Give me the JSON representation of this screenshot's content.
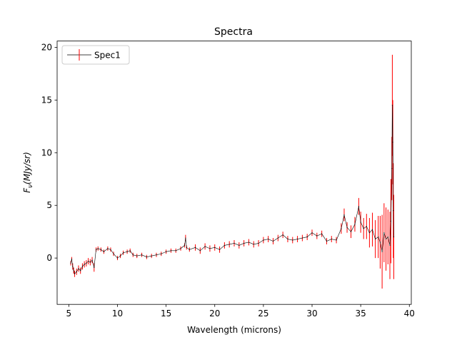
{
  "chart_data": {
    "type": "line",
    "title": "Spectra",
    "xlabel": "Wavelength (microns)",
    "ylabel_base": "F",
    "ylabel_sub": "ν",
    "ylabel_rest": "(MJy/sr)",
    "xlim": [
      3.8,
      40.2
    ],
    "ylim": [
      -4.4,
      20.6
    ],
    "xticks": [
      5,
      10,
      15,
      20,
      25,
      30,
      35,
      40
    ],
    "yticks": [
      0,
      5,
      10,
      15,
      20
    ],
    "legend": {
      "position": "top-left",
      "entries": [
        "Spec1"
      ]
    },
    "grid": false,
    "series": [
      {
        "name": "Spec1",
        "line_color": "#000000",
        "errorbar_color": "#ff0000",
        "x": [
          5.2,
          5.3,
          5.4,
          5.5,
          5.6,
          5.8,
          6.0,
          6.2,
          6.4,
          6.6,
          6.8,
          7.0,
          7.2,
          7.4,
          7.6,
          7.8,
          8.0,
          8.3,
          8.6,
          9.0,
          9.3,
          9.6,
          10.0,
          10.3,
          10.6,
          11.0,
          11.3,
          11.6,
          12.0,
          12.5,
          13.0,
          13.5,
          14.0,
          14.5,
          15.0,
          15.5,
          16.0,
          16.5,
          16.9,
          17.0,
          17.1,
          17.4,
          18.0,
          18.5,
          19.0,
          19.5,
          20.0,
          20.5,
          21.0,
          21.5,
          22.0,
          22.5,
          23.0,
          23.5,
          24.0,
          24.5,
          25.0,
          25.5,
          26.0,
          26.5,
          27.0,
          27.5,
          28.0,
          28.5,
          29.0,
          29.5,
          30.0,
          30.5,
          31.0,
          31.5,
          32.0,
          32.5,
          33.0,
          33.3,
          33.6,
          34.0,
          34.4,
          34.8,
          35.0,
          35.3,
          35.6,
          35.9,
          36.2,
          36.5,
          36.8,
          37.0,
          37.2,
          37.4,
          37.6,
          37.8,
          38.0,
          38.1,
          38.2,
          38.25,
          38.3,
          38.35,
          38.4
        ],
        "y": [
          -0.5,
          -0.1,
          -0.8,
          -1.2,
          -1.5,
          -1.3,
          -1.0,
          -1.2,
          -0.8,
          -0.6,
          -0.5,
          -0.3,
          -0.4,
          -0.2,
          -0.9,
          0.8,
          0.9,
          0.8,
          0.6,
          0.9,
          0.8,
          0.4,
          0.0,
          0.2,
          0.5,
          0.6,
          0.7,
          0.3,
          0.2,
          0.3,
          0.1,
          0.2,
          0.3,
          0.4,
          0.6,
          0.7,
          0.7,
          0.9,
          1.2,
          1.9,
          1.0,
          0.8,
          1.0,
          0.7,
          1.1,
          0.9,
          1.0,
          0.8,
          1.2,
          1.3,
          1.4,
          1.2,
          1.4,
          1.5,
          1.3,
          1.4,
          1.7,
          1.8,
          1.6,
          1.9,
          2.2,
          1.8,
          1.7,
          1.8,
          1.9,
          2.0,
          2.4,
          2.1,
          2.3,
          1.6,
          1.8,
          1.7,
          2.8,
          4.1,
          2.9,
          2.5,
          3.2,
          4.9,
          3.4,
          2.8,
          3.0,
          2.4,
          2.7,
          1.8,
          2.0,
          1.5,
          0.6,
          2.4,
          1.8,
          2.0,
          1.2,
          3.5,
          8.5,
          14.5,
          11.0,
          4.5,
          2.0
        ],
        "err": [
          0.2,
          0.2,
          0.3,
          0.3,
          0.3,
          0.3,
          0.3,
          0.3,
          0.3,
          0.3,
          0.3,
          0.3,
          0.3,
          0.3,
          0.4,
          0.2,
          0.2,
          0.2,
          0.2,
          0.2,
          0.2,
          0.2,
          0.2,
          0.2,
          0.2,
          0.2,
          0.2,
          0.2,
          0.2,
          0.2,
          0.2,
          0.2,
          0.2,
          0.2,
          0.2,
          0.2,
          0.2,
          0.2,
          0.2,
          0.3,
          0.2,
          0.2,
          0.3,
          0.3,
          0.3,
          0.3,
          0.3,
          0.3,
          0.3,
          0.3,
          0.3,
          0.3,
          0.3,
          0.3,
          0.3,
          0.3,
          0.3,
          0.3,
          0.3,
          0.3,
          0.3,
          0.3,
          0.3,
          0.3,
          0.3,
          0.3,
          0.3,
          0.3,
          0.3,
          0.3,
          0.3,
          0.3,
          0.5,
          0.6,
          0.5,
          0.6,
          0.7,
          0.8,
          1.0,
          1.0,
          1.2,
          1.4,
          1.6,
          1.8,
          2.0,
          2.5,
          3.5,
          2.8,
          3.0,
          2.6,
          3.2,
          4.0,
          3.0,
          4.8,
          4.0,
          4.5,
          4.0
        ]
      }
    ]
  }
}
